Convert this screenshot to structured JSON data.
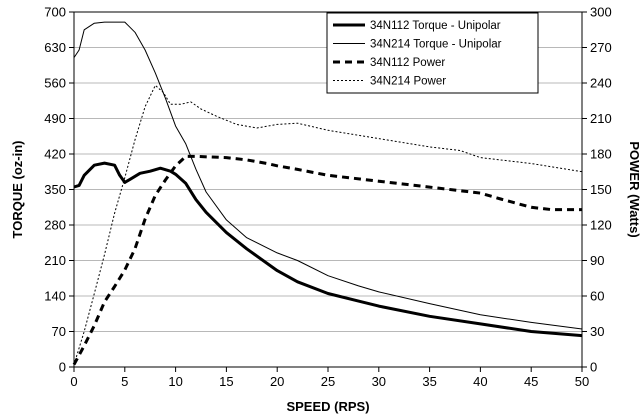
{
  "chart_data": {
    "type": "line",
    "xlabel": "SPEED (RPS)",
    "ylabel_left": "TORQUE (oz-in)",
    "ylabel_right": "POWER (Watts)",
    "xlim": [
      0,
      50
    ],
    "ylim_left": [
      0,
      700
    ],
    "ylim_right": [
      0,
      300
    ],
    "x_ticks": [
      0,
      5,
      10,
      15,
      20,
      25,
      30,
      35,
      40,
      45,
      50
    ],
    "y_left_ticks": [
      0,
      70,
      140,
      210,
      280,
      350,
      420,
      490,
      560,
      630,
      700
    ],
    "y_right_ticks": [
      0,
      30,
      60,
      90,
      120,
      150,
      180,
      210,
      240,
      270,
      300
    ],
    "grid": "horizontal",
    "legend_position": "top-right",
    "series": [
      {
        "name": "34N112 Torque - Unipolar",
        "axis": "left",
        "style": "thick-solid",
        "points": [
          [
            0,
            355
          ],
          [
            0.5,
            358
          ],
          [
            1,
            378
          ],
          [
            2,
            398
          ],
          [
            3,
            402
          ],
          [
            4,
            398
          ],
          [
            4.5,
            378
          ],
          [
            5,
            364
          ],
          [
            5.5,
            370
          ],
          [
            6.5,
            382
          ],
          [
            7.5,
            386
          ],
          [
            8.5,
            392
          ],
          [
            9.5,
            386
          ],
          [
            10,
            380
          ],
          [
            11,
            362
          ],
          [
            12,
            330
          ],
          [
            13,
            305
          ],
          [
            15,
            265
          ],
          [
            17,
            233
          ],
          [
            20,
            190
          ],
          [
            22,
            168
          ],
          [
            25,
            145
          ],
          [
            28,
            130
          ],
          [
            30,
            120
          ],
          [
            35,
            100
          ],
          [
            40,
            85
          ],
          [
            45,
            70
          ],
          [
            50,
            62
          ]
        ]
      },
      {
        "name": "34N214 Torque - Unipolar",
        "axis": "left",
        "style": "thin-solid",
        "points": [
          [
            0,
            610
          ],
          [
            0.5,
            625
          ],
          [
            1,
            665
          ],
          [
            2,
            678
          ],
          [
            3,
            680
          ],
          [
            4,
            680
          ],
          [
            5,
            680
          ],
          [
            6,
            660
          ],
          [
            7,
            625
          ],
          [
            8,
            580
          ],
          [
            9,
            530
          ],
          [
            10,
            475
          ],
          [
            11,
            440
          ],
          [
            12,
            390
          ],
          [
            13,
            345
          ],
          [
            15,
            290
          ],
          [
            17,
            255
          ],
          [
            20,
            225
          ],
          [
            22,
            210
          ],
          [
            25,
            180
          ],
          [
            28,
            160
          ],
          [
            30,
            148
          ],
          [
            35,
            125
          ],
          [
            40,
            103
          ],
          [
            45,
            88
          ],
          [
            50,
            75
          ]
        ]
      },
      {
        "name": "34N112 Power",
        "axis": "right",
        "style": "dashed",
        "points": [
          [
            0,
            2
          ],
          [
            1,
            18
          ],
          [
            2,
            35
          ],
          [
            3,
            55
          ],
          [
            4,
            68
          ],
          [
            5,
            82
          ],
          [
            6,
            100
          ],
          [
            7,
            125
          ],
          [
            8,
            145
          ],
          [
            9,
            158
          ],
          [
            10,
            170
          ],
          [
            11,
            178
          ],
          [
            12,
            178
          ],
          [
            15,
            177
          ],
          [
            17,
            175
          ],
          [
            19,
            172
          ],
          [
            20,
            170
          ],
          [
            22,
            167
          ],
          [
            25,
            162
          ],
          [
            30,
            157
          ],
          [
            35,
            152
          ],
          [
            40,
            147
          ],
          [
            42,
            142
          ],
          [
            45,
            135
          ],
          [
            47,
            133
          ],
          [
            50,
            133
          ]
        ]
      },
      {
        "name": "34N214 Power",
        "axis": "right",
        "style": "dotted",
        "points": [
          [
            0,
            2
          ],
          [
            1,
            30
          ],
          [
            2,
            62
          ],
          [
            3,
            95
          ],
          [
            4,
            130
          ],
          [
            5,
            160
          ],
          [
            6,
            192
          ],
          [
            7,
            220
          ],
          [
            8,
            238
          ],
          [
            8.8,
            232
          ],
          [
            9.5,
            222
          ],
          [
            10.5,
            222
          ],
          [
            11.5,
            224
          ],
          [
            12.5,
            218
          ],
          [
            14,
            212
          ],
          [
            16,
            205
          ],
          [
            18,
            202
          ],
          [
            20,
            205
          ],
          [
            22,
            206
          ],
          [
            25,
            200
          ],
          [
            30,
            193
          ],
          [
            35,
            186
          ],
          [
            38,
            183
          ],
          [
            40,
            177
          ],
          [
            45,
            172
          ],
          [
            50,
            165
          ]
        ]
      }
    ]
  }
}
